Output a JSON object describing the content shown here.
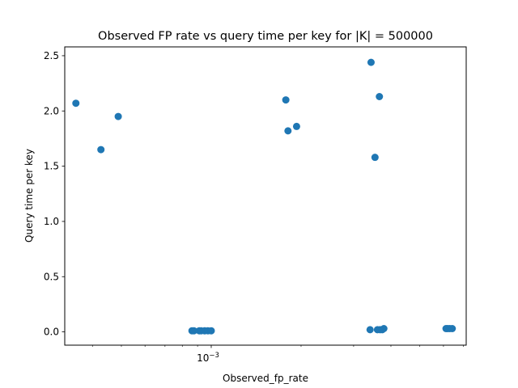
{
  "chart_data": {
    "type": "scatter",
    "title": "Observed FP rate vs query time per key for |K| = 500000",
    "xlabel": "Observed_fp_rate",
    "ylabel": "Query time per key",
    "xscale": "log",
    "xlim": [
      0.000323,
      0.00715
    ],
    "ylim": [
      -0.12,
      2.58
    ],
    "x_major_tick_labels": [
      {
        "value": 0.001,
        "base": "10",
        "exponent": "−3"
      }
    ],
    "x_minor_ticks": [
      0.0004,
      0.0005,
      0.0006,
      0.0007,
      0.0008,
      0.0009,
      0.002,
      0.003,
      0.004,
      0.005,
      0.006,
      0.007
    ],
    "y_ticks": [
      {
        "value": 0.0,
        "label": "0.0"
      },
      {
        "value": 0.5,
        "label": "0.5"
      },
      {
        "value": 1.0,
        "label": "1.0"
      },
      {
        "value": 1.5,
        "label": "1.5"
      },
      {
        "value": 2.0,
        "label": "2.0"
      },
      {
        "value": 2.5,
        "label": "2.5"
      }
    ],
    "grid": false,
    "marker_color": "#1f77b4",
    "points": [
      {
        "x": 0.000352,
        "y": 2.07
      },
      {
        "x": 0.000427,
        "y": 1.65
      },
      {
        "x": 0.000488,
        "y": 1.95
      },
      {
        "x": 0.000862,
        "y": 0.01
      },
      {
        "x": 0.000875,
        "y": 0.01
      },
      {
        "x": 0.000912,
        "y": 0.01
      },
      {
        "x": 0.000925,
        "y": 0.01
      },
      {
        "x": 0.00095,
        "y": 0.01
      },
      {
        "x": 0.000975,
        "y": 0.01
      },
      {
        "x": 0.001,
        "y": 0.01
      },
      {
        "x": 0.001778,
        "y": 2.1
      },
      {
        "x": 0.001808,
        "y": 1.82
      },
      {
        "x": 0.001932,
        "y": 1.86
      },
      {
        "x": 0.003406,
        "y": 0.02
      },
      {
        "x": 0.003432,
        "y": 2.44
      },
      {
        "x": 0.003538,
        "y": 1.58
      },
      {
        "x": 0.003605,
        "y": 0.02
      },
      {
        "x": 0.00366,
        "y": 2.13
      },
      {
        "x": 0.00368,
        "y": 0.02
      },
      {
        "x": 0.003742,
        "y": 0.02
      },
      {
        "x": 0.003788,
        "y": 0.03
      },
      {
        "x": 0.00612,
        "y": 0.03
      },
      {
        "x": 0.0062,
        "y": 0.03
      },
      {
        "x": 0.0063,
        "y": 0.03
      },
      {
        "x": 0.00642,
        "y": 0.03
      }
    ]
  }
}
